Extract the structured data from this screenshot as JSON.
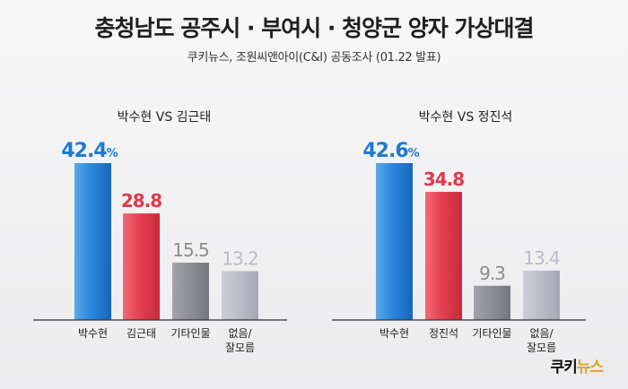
{
  "title": "충청남도 공주시 · 부여시 · 청양군 양자 가상대결",
  "subtitle": "쿠키뉴스, 조원씨앤아이(C&I) 공동조사 (01.22 발표)",
  "logo": {
    "text_main": "쿠키",
    "text_accent": "뉴스"
  },
  "colors": {
    "blue": "#1f7ad0",
    "red": "#e0384c",
    "gray": "#8e8f96",
    "lightgray": "#b9bbc8",
    "value_gray": "#8c8c8c"
  },
  "chart_data": [
    {
      "type": "bar",
      "title": "박수현 VS 김근태",
      "categories": [
        "박수현",
        "김근태",
        "기타인물",
        "없음/\n잘모름"
      ],
      "values": [
        42.4,
        28.8,
        15.5,
        13.2
      ],
      "value_labels": [
        "42.4",
        "28.8",
        "15.5",
        "13.2"
      ],
      "unit_first": "%",
      "ylim": [
        0,
        42.4
      ]
    },
    {
      "type": "bar",
      "title": "박수현 VS 정진석",
      "categories": [
        "박수현",
        "정진석",
        "기타인물",
        "없음/\n잘모름"
      ],
      "values": [
        42.6,
        34.8,
        9.3,
        13.4
      ],
      "value_labels": [
        "42.6",
        "34.8",
        "9.3",
        "13.4"
      ],
      "unit_first": "%",
      "ylim": [
        0,
        42.6
      ]
    }
  ]
}
